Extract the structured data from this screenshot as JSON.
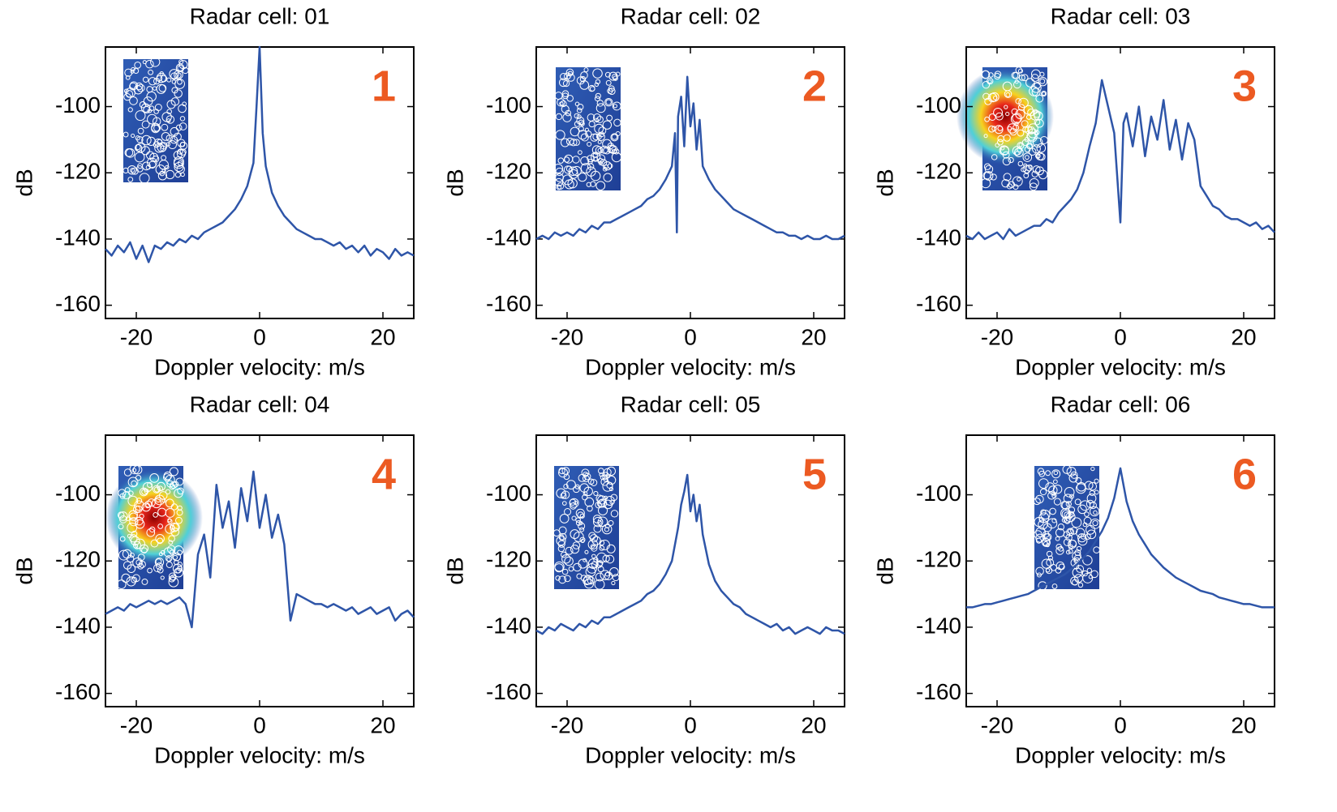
{
  "chart_data": [
    {
      "type": "line",
      "title": "Radar cell: 01",
      "annotation": "1",
      "xlabel": "Doppler velocity: m/s",
      "ylabel": "dB",
      "color": "#2e55a8",
      "xlim": [
        -25,
        25
      ],
      "ylim": [
        -164,
        -82
      ],
      "xticks": [
        -20,
        0,
        20
      ],
      "yticks": [
        -160,
        -140,
        -120,
        -100
      ],
      "x": [
        -25,
        -24,
        -23,
        -22,
        -21,
        -20,
        -19,
        -18,
        -17,
        -16,
        -15,
        -14,
        -13,
        -12,
        -11,
        -10,
        -9,
        -8,
        -7,
        -6,
        -5,
        -4,
        -3,
        -2,
        -1,
        -0.5,
        0,
        0.5,
        1,
        2,
        3,
        4,
        5,
        6,
        7,
        8,
        9,
        10,
        11,
        12,
        13,
        14,
        15,
        16,
        17,
        18,
        19,
        20,
        21,
        22,
        23,
        24,
        25
      ],
      "values": [
        -143,
        -145,
        -142,
        -144,
        -141,
        -146,
        -142,
        -147,
        -142,
        -143,
        -141,
        -142,
        -140,
        -141,
        -139,
        -140,
        -138,
        -137,
        -136,
        -135,
        -133,
        -131,
        -128,
        -124,
        -117,
        -100,
        -82,
        -108,
        -118,
        -126,
        -130,
        -133,
        -135,
        -137,
        -138,
        -139,
        -140,
        -140,
        -141,
        -142,
        -141,
        -143,
        -142,
        -144,
        -142,
        -145,
        -143,
        -144,
        -146,
        -143,
        -145,
        -144,
        -145
      ]
    },
    {
      "type": "line",
      "title": "Radar cell: 02",
      "annotation": "2",
      "xlabel": "Doppler velocity: m/s",
      "ylabel": "dB",
      "color": "#2e55a8",
      "xlim": [
        -25,
        25
      ],
      "ylim": [
        -164,
        -82
      ],
      "xticks": [
        -20,
        0,
        20
      ],
      "yticks": [
        -160,
        -140,
        -120,
        -100
      ],
      "x": [
        -25,
        -24,
        -23,
        -22,
        -21,
        -20,
        -19,
        -18,
        -17,
        -16,
        -15,
        -14,
        -13,
        -12,
        -11,
        -10,
        -9,
        -8,
        -7,
        -6,
        -5,
        -4,
        -3,
        -2.5,
        -2.2,
        -2,
        -1.5,
        -1,
        -0.5,
        0,
        0.5,
        1,
        1.5,
        2,
        3,
        4,
        5,
        6,
        7,
        8,
        9,
        10,
        11,
        12,
        13,
        14,
        15,
        16,
        17,
        18,
        19,
        20,
        21,
        22,
        23,
        24,
        25
      ],
      "values": [
        -140,
        -139,
        -140,
        -138,
        -139,
        -138,
        -139,
        -137,
        -138,
        -136,
        -137,
        -135,
        -135,
        -134,
        -133,
        -132,
        -131,
        -130,
        -128,
        -127,
        -125,
        -122,
        -118,
        -108,
        -138,
        -103,
        -97,
        -112,
        -91,
        -106,
        -99,
        -113,
        -104,
        -118,
        -122,
        -125,
        -127,
        -129,
        -131,
        -132,
        -133,
        -134,
        -135,
        -136,
        -137,
        -138,
        -138,
        -139,
        -139,
        -140,
        -139,
        -140,
        -140,
        -139,
        -140,
        -140,
        -139
      ]
    },
    {
      "type": "line",
      "title": "Radar cell: 03",
      "annotation": "3",
      "xlabel": "Doppler velocity: m/s",
      "ylabel": "dB",
      "color": "#2e55a8",
      "xlim": [
        -25,
        25
      ],
      "ylim": [
        -164,
        -82
      ],
      "xticks": [
        -20,
        0,
        20
      ],
      "yticks": [
        -160,
        -140,
        -120,
        -100
      ],
      "x": [
        -25,
        -24,
        -23,
        -22,
        -21,
        -20,
        -19,
        -18,
        -17,
        -16,
        -15,
        -14,
        -13,
        -12,
        -11,
        -10,
        -9,
        -8,
        -7,
        -6,
        -5,
        -4,
        -3,
        -2,
        -1,
        0,
        0.5,
        1,
        2,
        3,
        4,
        5,
        6,
        7,
        8,
        9,
        10,
        11,
        12,
        13,
        14,
        15,
        16,
        17,
        18,
        19,
        20,
        21,
        22,
        23,
        24,
        25
      ],
      "values": [
        -139,
        -140,
        -138,
        -140,
        -139,
        -138,
        -140,
        -137,
        -139,
        -138,
        -137,
        -136,
        -136,
        -134,
        -135,
        -132,
        -130,
        -128,
        -125,
        -120,
        -112,
        -105,
        -92,
        -100,
        -108,
        -135,
        -105,
        -102,
        -112,
        -100,
        -115,
        -103,
        -110,
        -98,
        -113,
        -104,
        -116,
        -105,
        -110,
        -124,
        -127,
        -130,
        -131,
        -133,
        -134,
        -134,
        -135,
        -136,
        -135,
        -137,
        -136,
        -138
      ]
    },
    {
      "type": "line",
      "title": "Radar cell: 04",
      "annotation": "4",
      "xlabel": "Doppler velocity: m/s",
      "ylabel": "dB",
      "color": "#2e55a8",
      "xlim": [
        -25,
        25
      ],
      "ylim": [
        -164,
        -82
      ],
      "xticks": [
        -20,
        0,
        20
      ],
      "yticks": [
        -160,
        -140,
        -120,
        -100
      ],
      "x": [
        -25,
        -24,
        -23,
        -22,
        -21,
        -20,
        -19,
        -18,
        -17,
        -16,
        -15,
        -14,
        -13,
        -12,
        -11,
        -10,
        -9,
        -8,
        -7,
        -6,
        -5,
        -4,
        -3,
        -2,
        -1,
        0,
        1,
        2,
        3,
        4,
        5,
        6,
        7,
        8,
        9,
        10,
        11,
        12,
        13,
        14,
        15,
        16,
        17,
        18,
        19,
        20,
        21,
        22,
        23,
        24,
        25
      ],
      "values": [
        -136,
        -135,
        -134,
        -135,
        -133,
        -134,
        -133,
        -132,
        -133,
        -132,
        -133,
        -132,
        -131,
        -133,
        -140,
        -118,
        -112,
        -125,
        -97,
        -110,
        -102,
        -116,
        -98,
        -108,
        -93,
        -110,
        -100,
        -113,
        -106,
        -115,
        -138,
        -130,
        -131,
        -132,
        -133,
        -133,
        -134,
        -133,
        -134,
        -135,
        -134,
        -136,
        -135,
        -134,
        -136,
        -135,
        -134,
        -138,
        -136,
        -135,
        -137
      ]
    },
    {
      "type": "line",
      "title": "Radar cell: 05",
      "annotation": "5",
      "xlabel": "Doppler velocity: m/s",
      "ylabel": "dB",
      "color": "#2e55a8",
      "xlim": [
        -25,
        25
      ],
      "ylim": [
        -164,
        -82
      ],
      "xticks": [
        -20,
        0,
        20
      ],
      "yticks": [
        -160,
        -140,
        -120,
        -100
      ],
      "x": [
        -25,
        -24,
        -23,
        -22,
        -21,
        -20,
        -19,
        -18,
        -17,
        -16,
        -15,
        -14,
        -13,
        -12,
        -11,
        -10,
        -9,
        -8,
        -7,
        -6,
        -5,
        -4,
        -3,
        -2,
        -1.5,
        -1,
        -0.5,
        0,
        0.5,
        1,
        1.5,
        2,
        3,
        4,
        5,
        6,
        7,
        8,
        9,
        10,
        11,
        12,
        13,
        14,
        15,
        16,
        17,
        18,
        19,
        20,
        21,
        22,
        23,
        24,
        25
      ],
      "values": [
        -141,
        -142,
        -140,
        -141,
        -139,
        -140,
        -141,
        -139,
        -140,
        -138,
        -139,
        -137,
        -137,
        -136,
        -135,
        -134,
        -133,
        -132,
        -130,
        -129,
        -127,
        -124,
        -120,
        -110,
        -103,
        -99,
        -94,
        -105,
        -100,
        -108,
        -103,
        -112,
        -121,
        -126,
        -129,
        -131,
        -133,
        -134,
        -136,
        -137,
        -138,
        -139,
        -140,
        -139,
        -141,
        -140,
        -142,
        -141,
        -140,
        -141,
        -142,
        -140,
        -141,
        -141,
        -142
      ]
    },
    {
      "type": "line",
      "title": "Radar cell: 06",
      "annotation": "6",
      "xlabel": "Doppler velocity: m/s",
      "ylabel": "dB",
      "color": "#2e55a8",
      "xlim": [
        -25,
        25
      ],
      "ylim": [
        -164,
        -82
      ],
      "xticks": [
        -20,
        0,
        20
      ],
      "yticks": [
        -160,
        -140,
        -120,
        -100
      ],
      "x": [
        -25,
        -24,
        -23,
        -22,
        -21,
        -20,
        -19,
        -18,
        -17,
        -16,
        -15,
        -14,
        -13,
        -12,
        -11,
        -10,
        -9,
        -8,
        -7,
        -6,
        -5,
        -4,
        -3,
        -2,
        -1,
        0,
        1,
        2,
        3,
        4,
        5,
        6,
        7,
        8,
        9,
        10,
        11,
        12,
        13,
        14,
        15,
        16,
        17,
        18,
        19,
        20,
        21,
        22,
        23,
        24,
        25
      ],
      "values": [
        -134,
        -134,
        -133.5,
        -133,
        -133,
        -132.5,
        -132,
        -131.5,
        -131,
        -130.5,
        -130,
        -129,
        -128,
        -127,
        -126,
        -125,
        -124,
        -122.5,
        -121,
        -119,
        -117,
        -114,
        -111,
        -107,
        -101,
        -92,
        -102,
        -108,
        -112,
        -115,
        -118,
        -120,
        -122,
        -123.5,
        -125,
        -126,
        -127,
        -128,
        -129,
        -129.5,
        -130,
        -131,
        -131.5,
        -132,
        -132.5,
        -133,
        -133,
        -133.5,
        -134,
        -134,
        -134
      ]
    }
  ]
}
